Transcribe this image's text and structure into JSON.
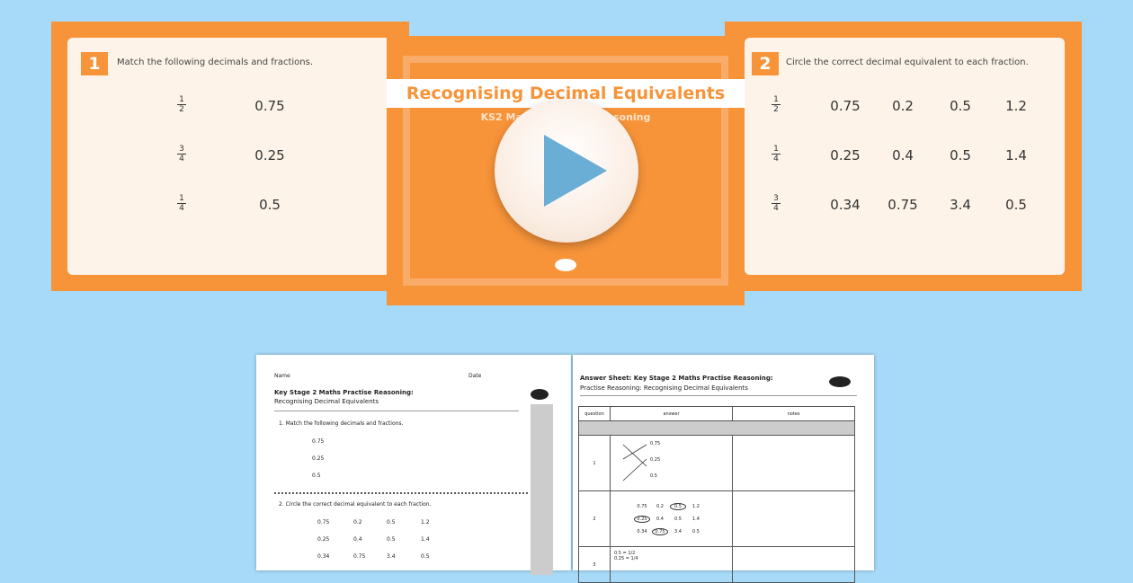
{
  "slide1": {
    "number": "1",
    "question": "Match the following decimals and fractions.",
    "rows": [
      {
        "num": "1",
        "den": "2",
        "value": "0.75"
      },
      {
        "num": "3",
        "den": "4",
        "value": "0.25"
      },
      {
        "num": "1",
        "den": "4",
        "value": "0.5"
      }
    ]
  },
  "title_slide": {
    "title": "Recognising Decimal Equivalents",
    "subtitle": "KS2 Maths Practise Reasoning",
    "play_icon": "play-icon"
  },
  "slide2": {
    "number": "2",
    "question": "Circle the correct decimal equivalent to each fraction.",
    "rows": [
      {
        "num": "1",
        "den": "2",
        "values": [
          "0.75",
          "0.2",
          "0.5",
          "1.2"
        ]
      },
      {
        "num": "1",
        "den": "4",
        "values": [
          "0.25",
          "0.4",
          "0.5",
          "1.4"
        ]
      },
      {
        "num": "3",
        "den": "4",
        "values": [
          "0.34",
          "0.75",
          "3.4",
          "0.5"
        ]
      }
    ]
  },
  "worksheet": {
    "name_label": "Name",
    "date_label": "Date",
    "title": "Key Stage 2 Maths Practise Reasoning:",
    "subtitle": "Recognising Decimal Equivalents",
    "q1": "1. Match the following decimals and fractions.",
    "q1_values": [
      "0.75",
      "0.25",
      "0.5"
    ],
    "q2": "2. Circle the correct decimal equivalent to each fraction.",
    "q2_rows": [
      [
        "0.75",
        "0.2",
        "0.5",
        "1.2"
      ],
      [
        "0.25",
        "0.4",
        "0.5",
        "1.4"
      ],
      [
        "0.34",
        "0.75",
        "3.4",
        "0.5"
      ]
    ]
  },
  "answer_sheet": {
    "title": "Answer Sheet: Key Stage 2 Maths Practise Reasoning:",
    "subtitle": "Practise Reasoning: Recognising Decimal Equivalents",
    "headers": [
      "question",
      "answer",
      "notes"
    ],
    "row1": {
      "q": "1",
      "values": [
        "0.75",
        "0.25",
        "0.5"
      ]
    },
    "row2": {
      "q": "2",
      "rows": [
        [
          "0.75",
          "0.2",
          "0.5",
          "1.2"
        ],
        [
          "0.25",
          "0.4",
          "0.5",
          "1.4"
        ],
        [
          "0.34",
          "0.75",
          "3.4",
          "0.5"
        ]
      ]
    },
    "row3": {
      "q": "3",
      "lines": [
        "0.5 = 1/2",
        "0.25 = 1/4"
      ]
    }
  },
  "colors": {
    "background": "#a6daf8",
    "orange": "#f7943a",
    "panel": "#fdf3e8",
    "play": "#6aaed6"
  }
}
